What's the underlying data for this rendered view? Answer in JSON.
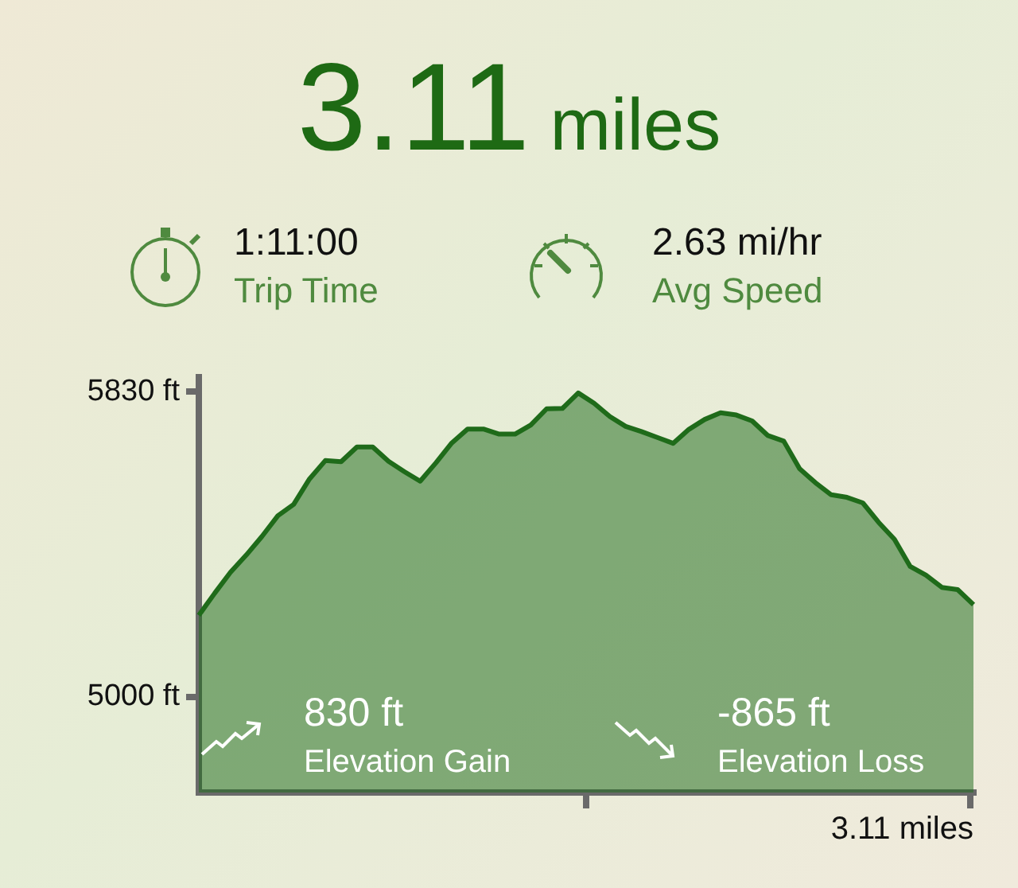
{
  "chart_data": {
    "type": "area",
    "title": "3.11 miles",
    "annotations": [
      "1:11:00",
      "Trip Time",
      "2.63 mi/hr",
      "Avg Speed",
      "830 ft",
      "Elevation Gain",
      "-865 ft",
      "Elevation Loss",
      "3.11 miles"
    ],
    "categories": [
      null,
      null,
      null,
      null,
      null,
      null,
      null,
      null,
      null,
      null,
      null,
      null,
      null,
      null,
      null,
      null,
      null,
      null,
      null,
      null,
      null,
      null,
      null,
      null,
      null,
      null,
      null,
      null,
      null,
      null,
      null,
      null,
      null,
      null,
      null,
      null,
      null,
      null,
      null,
      null,
      null,
      null,
      null,
      null,
      null,
      null,
      null,
      null,
      null,
      null
    ],
    "series": [
      {
        "color": "#1f6b1a",
        "values": [
          5222,
          5282,
          5339,
          5386,
          5437,
          5493,
          5524,
          5593,
          5643,
          5640,
          5680,
          5680,
          5641,
          5613,
          5587,
          5637,
          5691,
          5729,
          5729,
          5715,
          5715,
          5740,
          5784,
          5785,
          5827,
          5799,
          5763,
          5736,
          5722,
          5706,
          5690,
          5728,
          5755,
          5773,
          5767,
          5751,
          5711,
          5696,
          5621,
          5583,
          5550,
          5543,
          5528,
          5475,
          5429,
          5355,
          5331,
          5298,
          5292,
          5251
        ]
      }
    ],
    "ylim": [
      4740,
      5870
    ],
    "yticks": [
      {
        "value": 5000,
        "label": "5000 ft"
      },
      {
        "value": 5830,
        "label": "5830 ft"
      }
    ],
    "grid": false,
    "legend": false,
    "marker": "none",
    "line_style": "solid"
  }
}
